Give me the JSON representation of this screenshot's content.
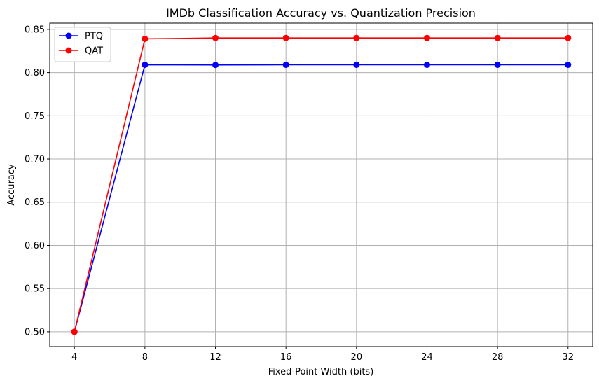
{
  "chart_data": {
    "type": "line",
    "title": "IMDb Classification Accuracy vs. Quantization Precision",
    "xlabel": "Fixed-Point Width (bits)",
    "ylabel": "Accuracy",
    "x": [
      4,
      8,
      12,
      16,
      20,
      24,
      28,
      32
    ],
    "xticks": [
      "4",
      "8",
      "12",
      "16",
      "20",
      "24",
      "28",
      "32"
    ],
    "yticks": [
      "0.50",
      "0.55",
      "0.60",
      "0.65",
      "0.70",
      "0.75",
      "0.80",
      "0.85"
    ],
    "ytick_values": [
      0.5,
      0.55,
      0.6,
      0.65,
      0.7,
      0.75,
      0.8,
      0.85
    ],
    "xlim": [
      2.6,
      33.4
    ],
    "ylim": [
      0.4829,
      0.8572
    ],
    "grid": true,
    "legend_position": "top-left",
    "series": [
      {
        "name": "PTQ",
        "color": "#0000ff",
        "values": [
          0.5,
          0.809,
          0.8088,
          0.809,
          0.809,
          0.809,
          0.809,
          0.809
        ]
      },
      {
        "name": "QAT",
        "color": "#ff0000",
        "values": [
          0.5,
          0.839,
          0.84,
          0.84,
          0.84,
          0.84,
          0.84,
          0.84
        ]
      }
    ]
  }
}
